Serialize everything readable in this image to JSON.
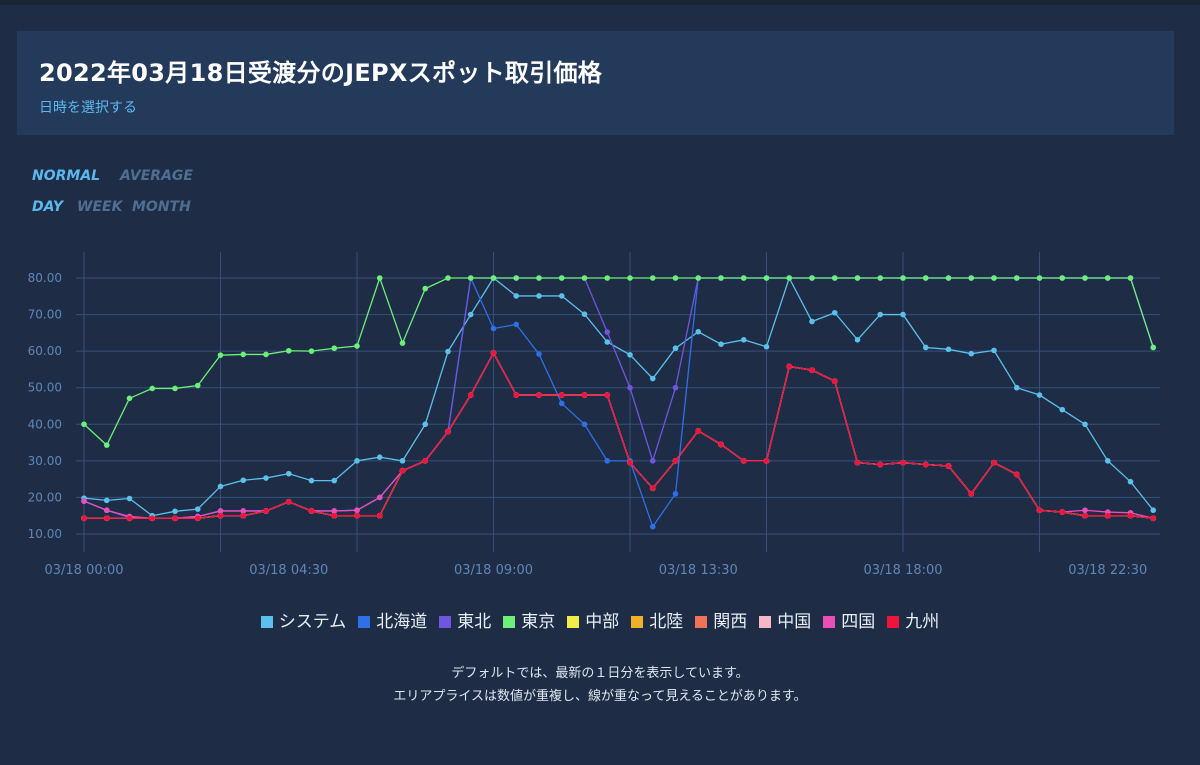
{
  "header": {
    "title": "2022年03月18日受渡分のJEPXスポット取引価格",
    "select_label": "日時を選択する"
  },
  "mode_toggle": {
    "normal": "NORMAL",
    "average": "AVERAGE"
  },
  "range_toggle": {
    "day": "DAY",
    "week": "WEEK",
    "month": "MONTH"
  },
  "notes": {
    "line1": "デフォルトでは、最新の１日分を表示しています。",
    "line2": "エリアプライスは数値が重複し、線が重なって見えることがあります。"
  },
  "chart_data": {
    "type": "line",
    "ylim": [
      10,
      80
    ],
    "yticks": [
      "10.00",
      "20.00",
      "30.00",
      "40.00",
      "50.00",
      "60.00",
      "70.00",
      "80.00"
    ],
    "xtick_labels": [
      {
        "index": 0,
        "label": "03/18 00:00"
      },
      {
        "index": 9,
        "label": "03/18 04:30"
      },
      {
        "index": 18,
        "label": "03/18 09:00"
      },
      {
        "index": 27,
        "label": "03/18 13:30"
      },
      {
        "index": 36,
        "label": "03/18 18:00"
      },
      {
        "index": 45,
        "label": "03/18 22:30"
      }
    ],
    "grid_vertical_indices": [
      0,
      6,
      12,
      18,
      24,
      30,
      36,
      42
    ],
    "grid": true,
    "legend_position": "bottom",
    "series": [
      {
        "name": "システム",
        "color": "#5bc0eb",
        "values": [
          19.8,
          19.2,
          19.7,
          15.0,
          16.2,
          16.8,
          23.0,
          24.7,
          25.3,
          26.5,
          24.6,
          24.6,
          30.0,
          31.0,
          30.0,
          40.0,
          59.9,
          70.0,
          80.0,
          75.1,
          75.1,
          75.1,
          70.1,
          62.5,
          59.0,
          52.5,
          60.8,
          65.3,
          61.9,
          63.1,
          61.2,
          80.0,
          68.1,
          70.5,
          63.1,
          70.0,
          70.0,
          61.0,
          60.5,
          59.3,
          60.2,
          50.0,
          48.0,
          44.0,
          40.0,
          30.0,
          24.3,
          16.5
        ]
      },
      {
        "name": "北海道",
        "color": "#2f6fe8",
        "values": [
          19.0,
          16.5,
          14.5,
          14.3,
          14.3,
          14.8,
          16.3,
          16.3,
          16.3,
          18.8,
          16.3,
          16.3,
          16.5,
          20.0,
          27.3,
          30.0,
          38.0,
          80.0,
          66.2,
          67.3,
          59.2,
          45.7,
          40.0,
          30.0,
          30.0,
          12.0,
          21.0,
          80.0,
          80.0,
          80.0,
          80.0,
          80.0,
          80.0,
          80.0,
          80.0,
          80.0,
          80.0,
          80.0,
          80.0,
          80.0,
          80.0,
          80.0,
          80.0,
          80.0,
          80.0,
          80.0,
          80.0,
          61.0
        ]
      },
      {
        "name": "東北",
        "color": "#7055e0",
        "values": [
          19.0,
          16.5,
          14.5,
          14.3,
          14.3,
          14.8,
          16.3,
          16.3,
          16.3,
          18.8,
          16.3,
          16.3,
          16.5,
          20.0,
          27.3,
          30.0,
          38.0,
          80.0,
          80.0,
          80.0,
          80.0,
          80.0,
          80.0,
          65.2,
          50.0,
          30.0,
          50.0,
          80.0,
          80.0,
          80.0,
          80.0,
          80.0,
          80.0,
          80.0,
          80.0,
          80.0,
          80.0,
          80.0,
          80.0,
          80.0,
          80.0,
          80.0,
          80.0,
          80.0,
          80.0,
          80.0,
          80.0,
          61.0
        ]
      },
      {
        "name": "東京",
        "color": "#6cf07a",
        "values": [
          40.0,
          34.3,
          47.1,
          49.8,
          49.8,
          50.6,
          58.9,
          59.1,
          59.1,
          60.1,
          60.0,
          60.8,
          61.4,
          80.0,
          62.2,
          77.1,
          80.0,
          80.0,
          80.0,
          80.0,
          80.0,
          80.0,
          80.0,
          80.0,
          80.0,
          80.0,
          80.0,
          80.0,
          80.0,
          80.0,
          80.0,
          80.0,
          80.0,
          80.0,
          80.0,
          80.0,
          80.0,
          80.0,
          80.0,
          80.0,
          80.0,
          80.0,
          80.0,
          80.0,
          80.0,
          80.0,
          80.0,
          61.0
        ]
      },
      {
        "name": "中部",
        "color": "#f2ec4a",
        "values": [
          14.3,
          14.3,
          14.3,
          14.3,
          14.3,
          14.3,
          15.0,
          15.0,
          16.3,
          18.8,
          16.3,
          15.0,
          15.0,
          15.0,
          27.3,
          30.0,
          38.0,
          48.0,
          59.5,
          48.0,
          48.0,
          48.0,
          48.0,
          48.0,
          29.5,
          22.5,
          30.0,
          38.2,
          34.5,
          30.0,
          30.0,
          55.8,
          54.8,
          51.8,
          29.5,
          29.0,
          29.5,
          29.0,
          28.6,
          21.0,
          29.5,
          26.3,
          16.5,
          16.0,
          15.0,
          15.0,
          15.0,
          14.3
        ]
      },
      {
        "name": "北陸",
        "color": "#f0b02a",
        "values": [
          14.3,
          14.3,
          14.3,
          14.3,
          14.3,
          14.3,
          15.0,
          15.0,
          16.3,
          18.8,
          16.3,
          15.0,
          15.0,
          15.0,
          27.3,
          30.0,
          38.0,
          48.0,
          59.5,
          48.0,
          48.0,
          48.0,
          48.0,
          48.0,
          29.5,
          22.5,
          30.0,
          38.2,
          34.5,
          30.0,
          30.0,
          55.8,
          54.8,
          51.8,
          29.5,
          29.0,
          29.5,
          29.0,
          28.6,
          21.0,
          29.5,
          26.3,
          16.5,
          16.0,
          15.0,
          15.0,
          15.0,
          14.3
        ]
      },
      {
        "name": "関西",
        "color": "#f07258",
        "values": [
          14.3,
          14.3,
          14.3,
          14.3,
          14.3,
          14.3,
          15.0,
          15.0,
          16.3,
          18.8,
          16.3,
          15.0,
          15.0,
          15.0,
          27.3,
          30.0,
          38.0,
          48.0,
          59.5,
          48.0,
          48.0,
          48.0,
          48.0,
          48.0,
          29.5,
          22.5,
          30.0,
          38.2,
          34.5,
          30.0,
          30.0,
          55.8,
          54.8,
          51.8,
          29.5,
          29.0,
          29.5,
          29.0,
          28.6,
          21.0,
          29.5,
          26.3,
          16.5,
          16.0,
          15.0,
          15.0,
          15.0,
          14.3
        ]
      },
      {
        "name": "中国",
        "color": "#f6b8c8",
        "values": [
          14.3,
          14.3,
          14.3,
          14.3,
          14.3,
          14.3,
          15.0,
          15.0,
          16.3,
          18.8,
          16.3,
          15.0,
          15.0,
          15.0,
          27.3,
          30.0,
          38.0,
          48.0,
          59.5,
          48.0,
          48.0,
          48.0,
          48.0,
          48.0,
          29.5,
          22.5,
          30.0,
          38.2,
          34.5,
          30.0,
          30.0,
          55.8,
          54.8,
          51.8,
          29.5,
          29.0,
          29.5,
          29.0,
          28.6,
          21.0,
          29.5,
          26.3,
          16.5,
          16.0,
          15.0,
          15.0,
          15.0,
          14.3
        ]
      },
      {
        "name": "四国",
        "color": "#ea4fb8",
        "values": [
          19.0,
          16.5,
          14.8,
          14.3,
          14.3,
          14.8,
          16.3,
          16.3,
          16.3,
          18.8,
          16.3,
          16.3,
          16.5,
          20.0,
          27.3,
          30.0,
          38.0,
          48.0,
          59.5,
          48.0,
          48.0,
          48.0,
          48.0,
          48.0,
          29.5,
          22.5,
          30.0,
          38.2,
          34.5,
          30.0,
          30.0,
          55.8,
          54.8,
          51.8,
          29.5,
          29.0,
          29.5,
          29.0,
          28.6,
          21.0,
          29.5,
          26.3,
          16.5,
          16.0,
          16.5,
          16.0,
          15.8,
          14.3
        ]
      },
      {
        "name": "九州",
        "color": "#f0143c",
        "values": [
          14.3,
          14.3,
          14.3,
          14.3,
          14.3,
          14.3,
          15.0,
          15.0,
          16.3,
          18.8,
          16.3,
          15.0,
          15.0,
          15.0,
          27.3,
          30.0,
          38.0,
          48.0,
          59.5,
          48.0,
          48.0,
          48.0,
          48.0,
          48.0,
          29.5,
          22.5,
          30.0,
          38.2,
          34.5,
          30.0,
          30.0,
          55.8,
          54.8,
          51.8,
          29.5,
          29.0,
          29.5,
          29.0,
          28.6,
          21.0,
          29.5,
          26.3,
          16.5,
          16.0,
          15.0,
          15.0,
          15.0,
          14.3
        ]
      }
    ]
  }
}
